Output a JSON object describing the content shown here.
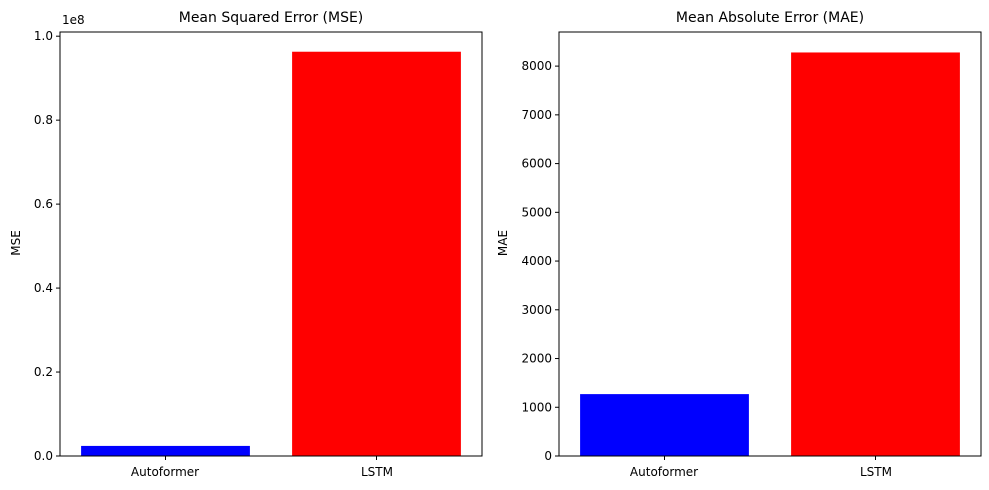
{
  "chart_data": [
    {
      "type": "bar",
      "title": "Mean Squared Error (MSE)",
      "xlabel": "",
      "ylabel": "MSE",
      "offset_label": "1e8",
      "categories": [
        "Autoformer",
        "LSTM"
      ],
      "values": [
        2400000,
        96300000
      ],
      "colors": [
        "#0000ff",
        "#ff0000"
      ],
      "ylim": [
        0,
        101000000
      ],
      "yticks": [
        0,
        20000000,
        40000000,
        60000000,
        80000000,
        100000000
      ],
      "ytick_labels": [
        "0.0",
        "0.2",
        "0.4",
        "0.6",
        "0.8",
        "1.0"
      ],
      "grid": false
    },
    {
      "type": "bar",
      "title": "Mean Absolute Error (MAE)",
      "xlabel": "",
      "ylabel": "MAE",
      "categories": [
        "Autoformer",
        "LSTM"
      ],
      "values": [
        1270,
        8280
      ],
      "colors": [
        "#0000ff",
        "#ff0000"
      ],
      "ylim": [
        0,
        8700
      ],
      "yticks": [
        0,
        1000,
        2000,
        3000,
        4000,
        5000,
        6000,
        7000,
        8000
      ],
      "ytick_labels": [
        "0",
        "1000",
        "2000",
        "3000",
        "4000",
        "5000",
        "6000",
        "7000",
        "8000"
      ],
      "grid": false
    }
  ]
}
